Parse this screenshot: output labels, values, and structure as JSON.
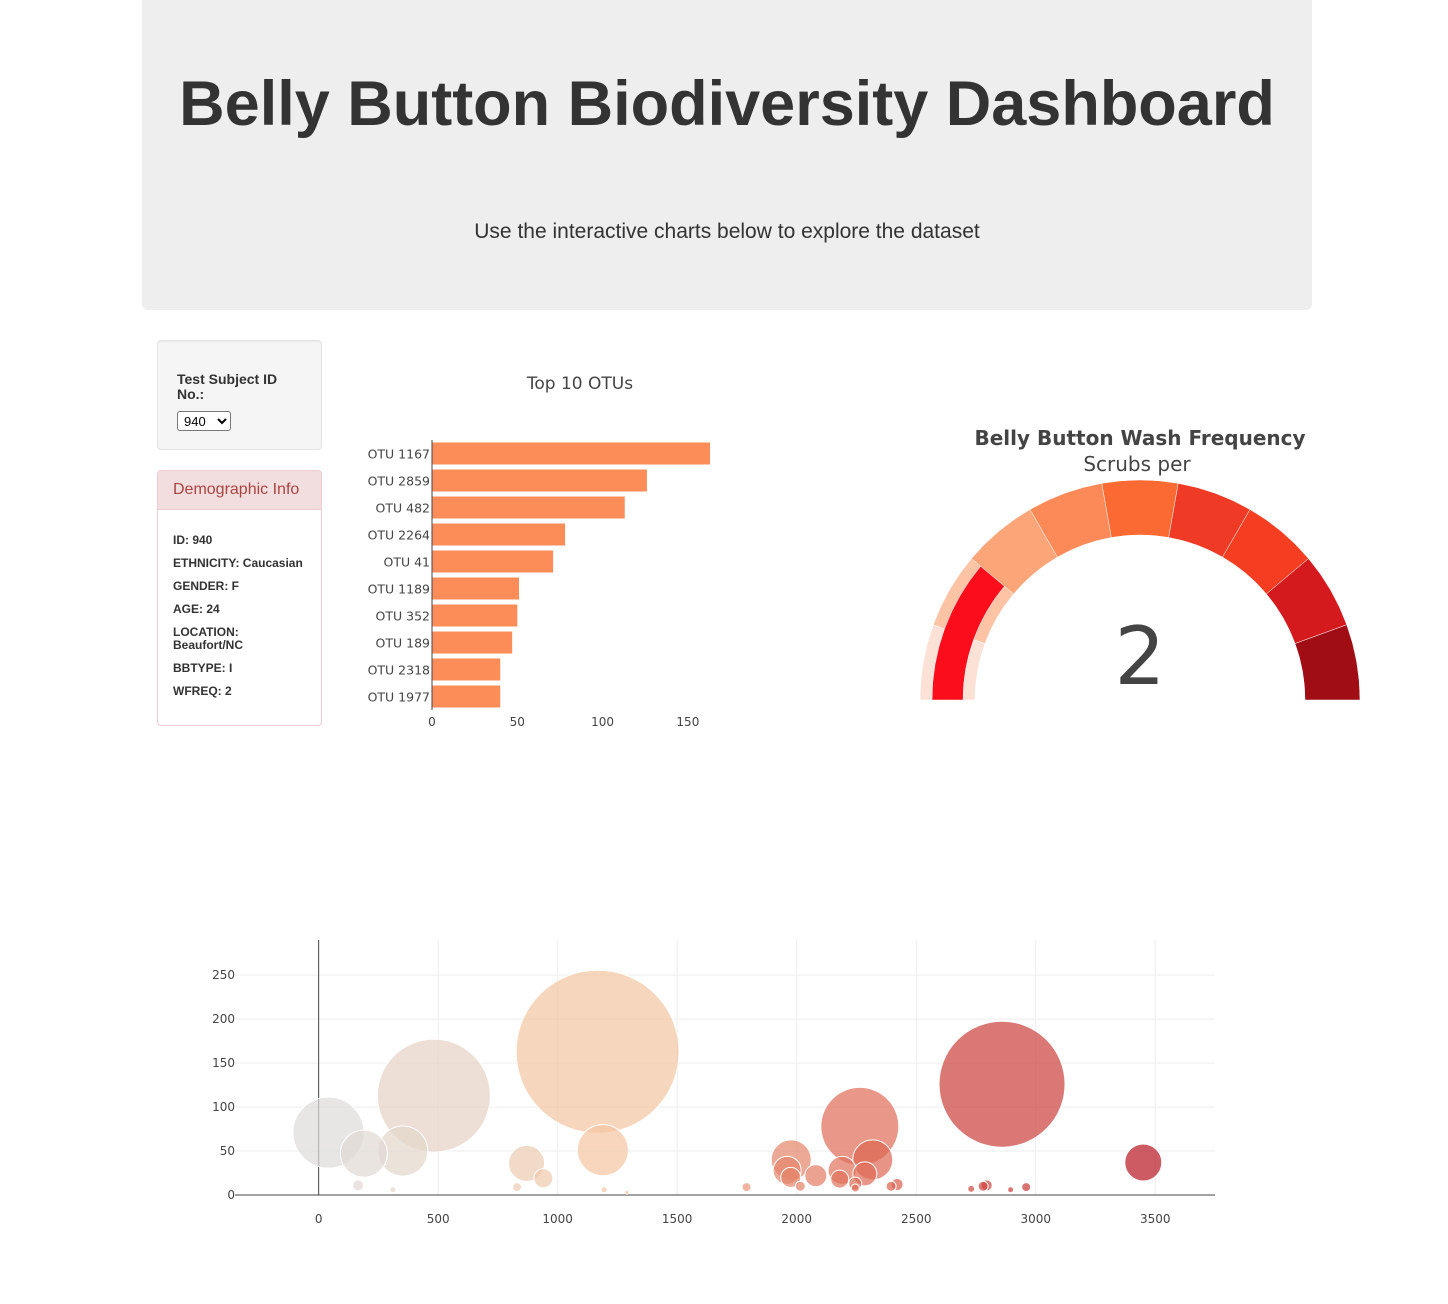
{
  "header": {
    "title": "Belly Button Biodiversity Dashboard",
    "subtitle": "Use the interactive charts below to explore the dataset"
  },
  "selector": {
    "label": "Test Subject ID No.:",
    "selected": "940"
  },
  "demographics": {
    "heading": "Demographic Info",
    "rows": [
      "ID: 940",
      "ETHNICITY: Caucasian",
      "GENDER: F",
      "AGE: 24",
      "LOCATION: Beaufort/NC",
      "BBTYPE: I",
      "WFREQ: 2"
    ]
  },
  "chart_data": [
    {
      "type": "bar",
      "orientation": "horizontal",
      "title": "Top 10 OTUs",
      "categories": [
        "OTU 1167",
        "OTU 2859",
        "OTU 482",
        "OTU 2264",
        "OTU 41",
        "OTU 1189",
        "OTU 352",
        "OTU 189",
        "OTU 2318",
        "OTU 1977"
      ],
      "values": [
        163,
        126,
        113,
        78,
        71,
        51,
        50,
        47,
        40,
        40
      ],
      "xlim": [
        0,
        170
      ],
      "xticks": [
        0,
        50,
        100,
        150
      ],
      "color": "#fc8d59"
    },
    {
      "type": "gauge",
      "title": "Belly Button Wash Frequency",
      "subtitle": "Scrubs per",
      "value": 2,
      "range": [
        0,
        9
      ],
      "value_color": "#fb0d1c",
      "steps": [
        "#fbe1d6",
        "#fcc3a4",
        "#fca579",
        "#fc8a59",
        "#fb6a32",
        "#ef3b26",
        "#f53e21",
        "#d51a1e",
        "#a10d15"
      ]
    },
    {
      "type": "scatter",
      "mode": "bubble",
      "xlim": [
        -350,
        3750
      ],
      "ylim": [
        0,
        290
      ],
      "xticks": [
        0,
        500,
        1000,
        1500,
        2000,
        2500,
        3000,
        3500
      ],
      "yticks": [
        0,
        50,
        100,
        150,
        200,
        250
      ],
      "points": [
        {
          "x": 41,
          "y": 71
        },
        {
          "x": 189,
          "y": 47
        },
        {
          "x": 352,
          "y": 50
        },
        {
          "x": 482,
          "y": 113
        },
        {
          "x": 1167,
          "y": 163
        },
        {
          "x": 1189,
          "y": 51
        },
        {
          "x": 870,
          "y": 36
        },
        {
          "x": 940,
          "y": 19
        },
        {
          "x": 165,
          "y": 11
        },
        {
          "x": 310,
          "y": 6
        },
        {
          "x": 830,
          "y": 9
        },
        {
          "x": 1195,
          "y": 6
        },
        {
          "x": 1290,
          "y": 3
        },
        {
          "x": 1790,
          "y": 9
        },
        {
          "x": 1977,
          "y": 40
        },
        {
          "x": 1960,
          "y": 28
        },
        {
          "x": 1975,
          "y": 20
        },
        {
          "x": 2015,
          "y": 10
        },
        {
          "x": 2080,
          "y": 22
        },
        {
          "x": 2190,
          "y": 28
        },
        {
          "x": 2180,
          "y": 18
        },
        {
          "x": 2264,
          "y": 78
        },
        {
          "x": 2318,
          "y": 40
        },
        {
          "x": 2285,
          "y": 24
        },
        {
          "x": 2245,
          "y": 13
        },
        {
          "x": 2245,
          "y": 8
        },
        {
          "x": 2395,
          "y": 10
        },
        {
          "x": 2420,
          "y": 12
        },
        {
          "x": 2859,
          "y": 126
        },
        {
          "x": 2795,
          "y": 11
        },
        {
          "x": 2780,
          "y": 10
        },
        {
          "x": 2730,
          "y": 7
        },
        {
          "x": 2895,
          "y": 6
        },
        {
          "x": 2960,
          "y": 9
        },
        {
          "x": 3450,
          "y": 37
        }
      ]
    }
  ]
}
